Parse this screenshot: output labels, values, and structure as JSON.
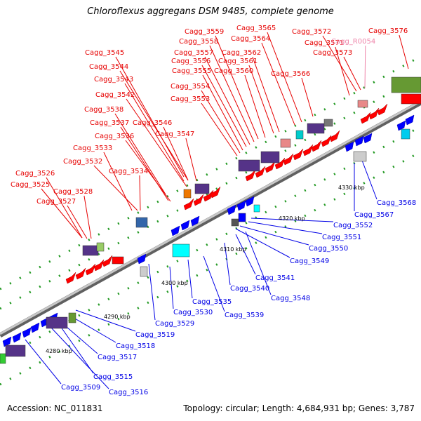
{
  "title": "Chloroflexus aggregans DSM 9485, complete genome",
  "accession": "Accession: NC_011831",
  "summary": "Topology: circular; Length: 4,684,931 bp; Genes: 3,787",
  "colors": {
    "forward_label": "#e60000",
    "reverse_label": "#0000e6",
    "rna_label": "#ee82a8",
    "cds_forward": "#ff0000",
    "cds_reverse": "#0000ff",
    "backbone": "#999999"
  },
  "kbp_ticks": [
    {
      "id": "t4280",
      "label": "4280 kbp"
    },
    {
      "id": "t4290",
      "label": "4290 kbp"
    },
    {
      "id": "t4300",
      "label": "4300 kbp"
    },
    {
      "id": "t4310",
      "label": "4310 kbp"
    },
    {
      "id": "t4320",
      "label": "4320 kbp"
    },
    {
      "id": "t4330",
      "label": "4330 kbp"
    }
  ],
  "genes_top": [
    {
      "id": "3526",
      "label": "Cagg_3526",
      "type": "forward"
    },
    {
      "id": "3525",
      "label": "Cagg_3525",
      "type": "forward"
    },
    {
      "id": "3528",
      "label": "Cagg_3528",
      "type": "forward"
    },
    {
      "id": "3527",
      "label": "Cagg_3527",
      "type": "forward"
    },
    {
      "id": "3534",
      "label": "Cagg_3534",
      "type": "forward"
    },
    {
      "id": "3532",
      "label": "Cagg_3532",
      "type": "forward"
    },
    {
      "id": "3533",
      "label": "Cagg_3533",
      "type": "forward"
    },
    {
      "id": "3536",
      "label": "Cagg_3536",
      "type": "forward"
    },
    {
      "id": "3537",
      "label": "Cagg_3537",
      "type": "forward"
    },
    {
      "id": "3538",
      "label": "Cagg_3538",
      "type": "forward"
    },
    {
      "id": "3542",
      "label": "Cagg_3542",
      "type": "forward"
    },
    {
      "id": "3543",
      "label": "Cagg_3543",
      "type": "forward"
    },
    {
      "id": "3544",
      "label": "Cagg_3544",
      "type": "forward"
    },
    {
      "id": "3545",
      "label": "Cagg_3545",
      "type": "forward"
    },
    {
      "id": "3546",
      "label": "Cagg_3546",
      "type": "forward"
    },
    {
      "id": "3547",
      "label": "Cagg_3547",
      "type": "forward"
    },
    {
      "id": "3553",
      "label": "Cagg_3553",
      "type": "forward"
    },
    {
      "id": "3554",
      "label": "Cagg_3554",
      "type": "forward"
    },
    {
      "id": "3555",
      "label": "Cagg_3555",
      "type": "forward"
    },
    {
      "id": "3556",
      "label": "Cagg_3556",
      "type": "forward"
    },
    {
      "id": "3557",
      "label": "Cagg_3557",
      "type": "forward"
    },
    {
      "id": "3558",
      "label": "Cagg_3558",
      "type": "forward"
    },
    {
      "id": "3559",
      "label": "Cagg_3559",
      "type": "forward"
    },
    {
      "id": "3560",
      "label": "Cagg_3560",
      "type": "forward"
    },
    {
      "id": "3561",
      "label": "Cagg_3561",
      "type": "forward"
    },
    {
      "id": "3562",
      "label": "Cagg_3562",
      "type": "forward"
    },
    {
      "id": "3564",
      "label": "Cagg_3564",
      "type": "forward"
    },
    {
      "id": "3565",
      "label": "Cagg_3565",
      "type": "forward"
    },
    {
      "id": "3566",
      "label": "Cagg_3566",
      "type": "forward"
    },
    {
      "id": "3571",
      "label": "Cagg_3571",
      "type": "forward"
    },
    {
      "id": "3572",
      "label": "Cagg_3572",
      "type": "forward"
    },
    {
      "id": "R0054",
      "label": "Cagg_R0054",
      "type": "rna"
    },
    {
      "id": "3573",
      "label": "Cagg_3573",
      "type": "forward"
    },
    {
      "id": "3576",
      "label": "Cagg_3576",
      "type": "forward"
    }
  ],
  "genes_bottom": [
    {
      "id": "3568",
      "label": "Cagg_3568",
      "type": "reverse"
    },
    {
      "id": "3567",
      "label": "Cagg_3567",
      "type": "reverse"
    },
    {
      "id": "3552",
      "label": "Cagg_3552",
      "type": "reverse"
    },
    {
      "id": "3551",
      "label": "Cagg_3551",
      "type": "reverse"
    },
    {
      "id": "3550",
      "label": "Cagg_3550",
      "type": "reverse"
    },
    {
      "id": "3549",
      "label": "Cagg_3549",
      "type": "reverse"
    },
    {
      "id": "3541",
      "label": "Cagg_3541",
      "type": "reverse"
    },
    {
      "id": "3540",
      "label": "Cagg_3540",
      "type": "reverse"
    },
    {
      "id": "3548",
      "label": "Cagg_3548",
      "type": "reverse"
    },
    {
      "id": "3535",
      "label": "Cagg_3535",
      "type": "reverse"
    },
    {
      "id": "3539",
      "label": "Cagg_3539",
      "type": "reverse"
    },
    {
      "id": "3530",
      "label": "Cagg_3530",
      "type": "reverse"
    },
    {
      "id": "3529",
      "label": "Cagg_3529",
      "type": "reverse"
    },
    {
      "id": "3519",
      "label": "Cagg_3519",
      "type": "reverse"
    },
    {
      "id": "3518",
      "label": "Cagg_3518",
      "type": "reverse"
    },
    {
      "id": "3517",
      "label": "Cagg_3517",
      "type": "reverse"
    },
    {
      "id": "3515",
      "label": "Cagg_3515",
      "type": "reverse"
    },
    {
      "id": "3509",
      "label": "Cagg_3509",
      "type": "reverse"
    },
    {
      "id": "3516",
      "label": "Cagg_3516",
      "type": "reverse"
    }
  ]
}
